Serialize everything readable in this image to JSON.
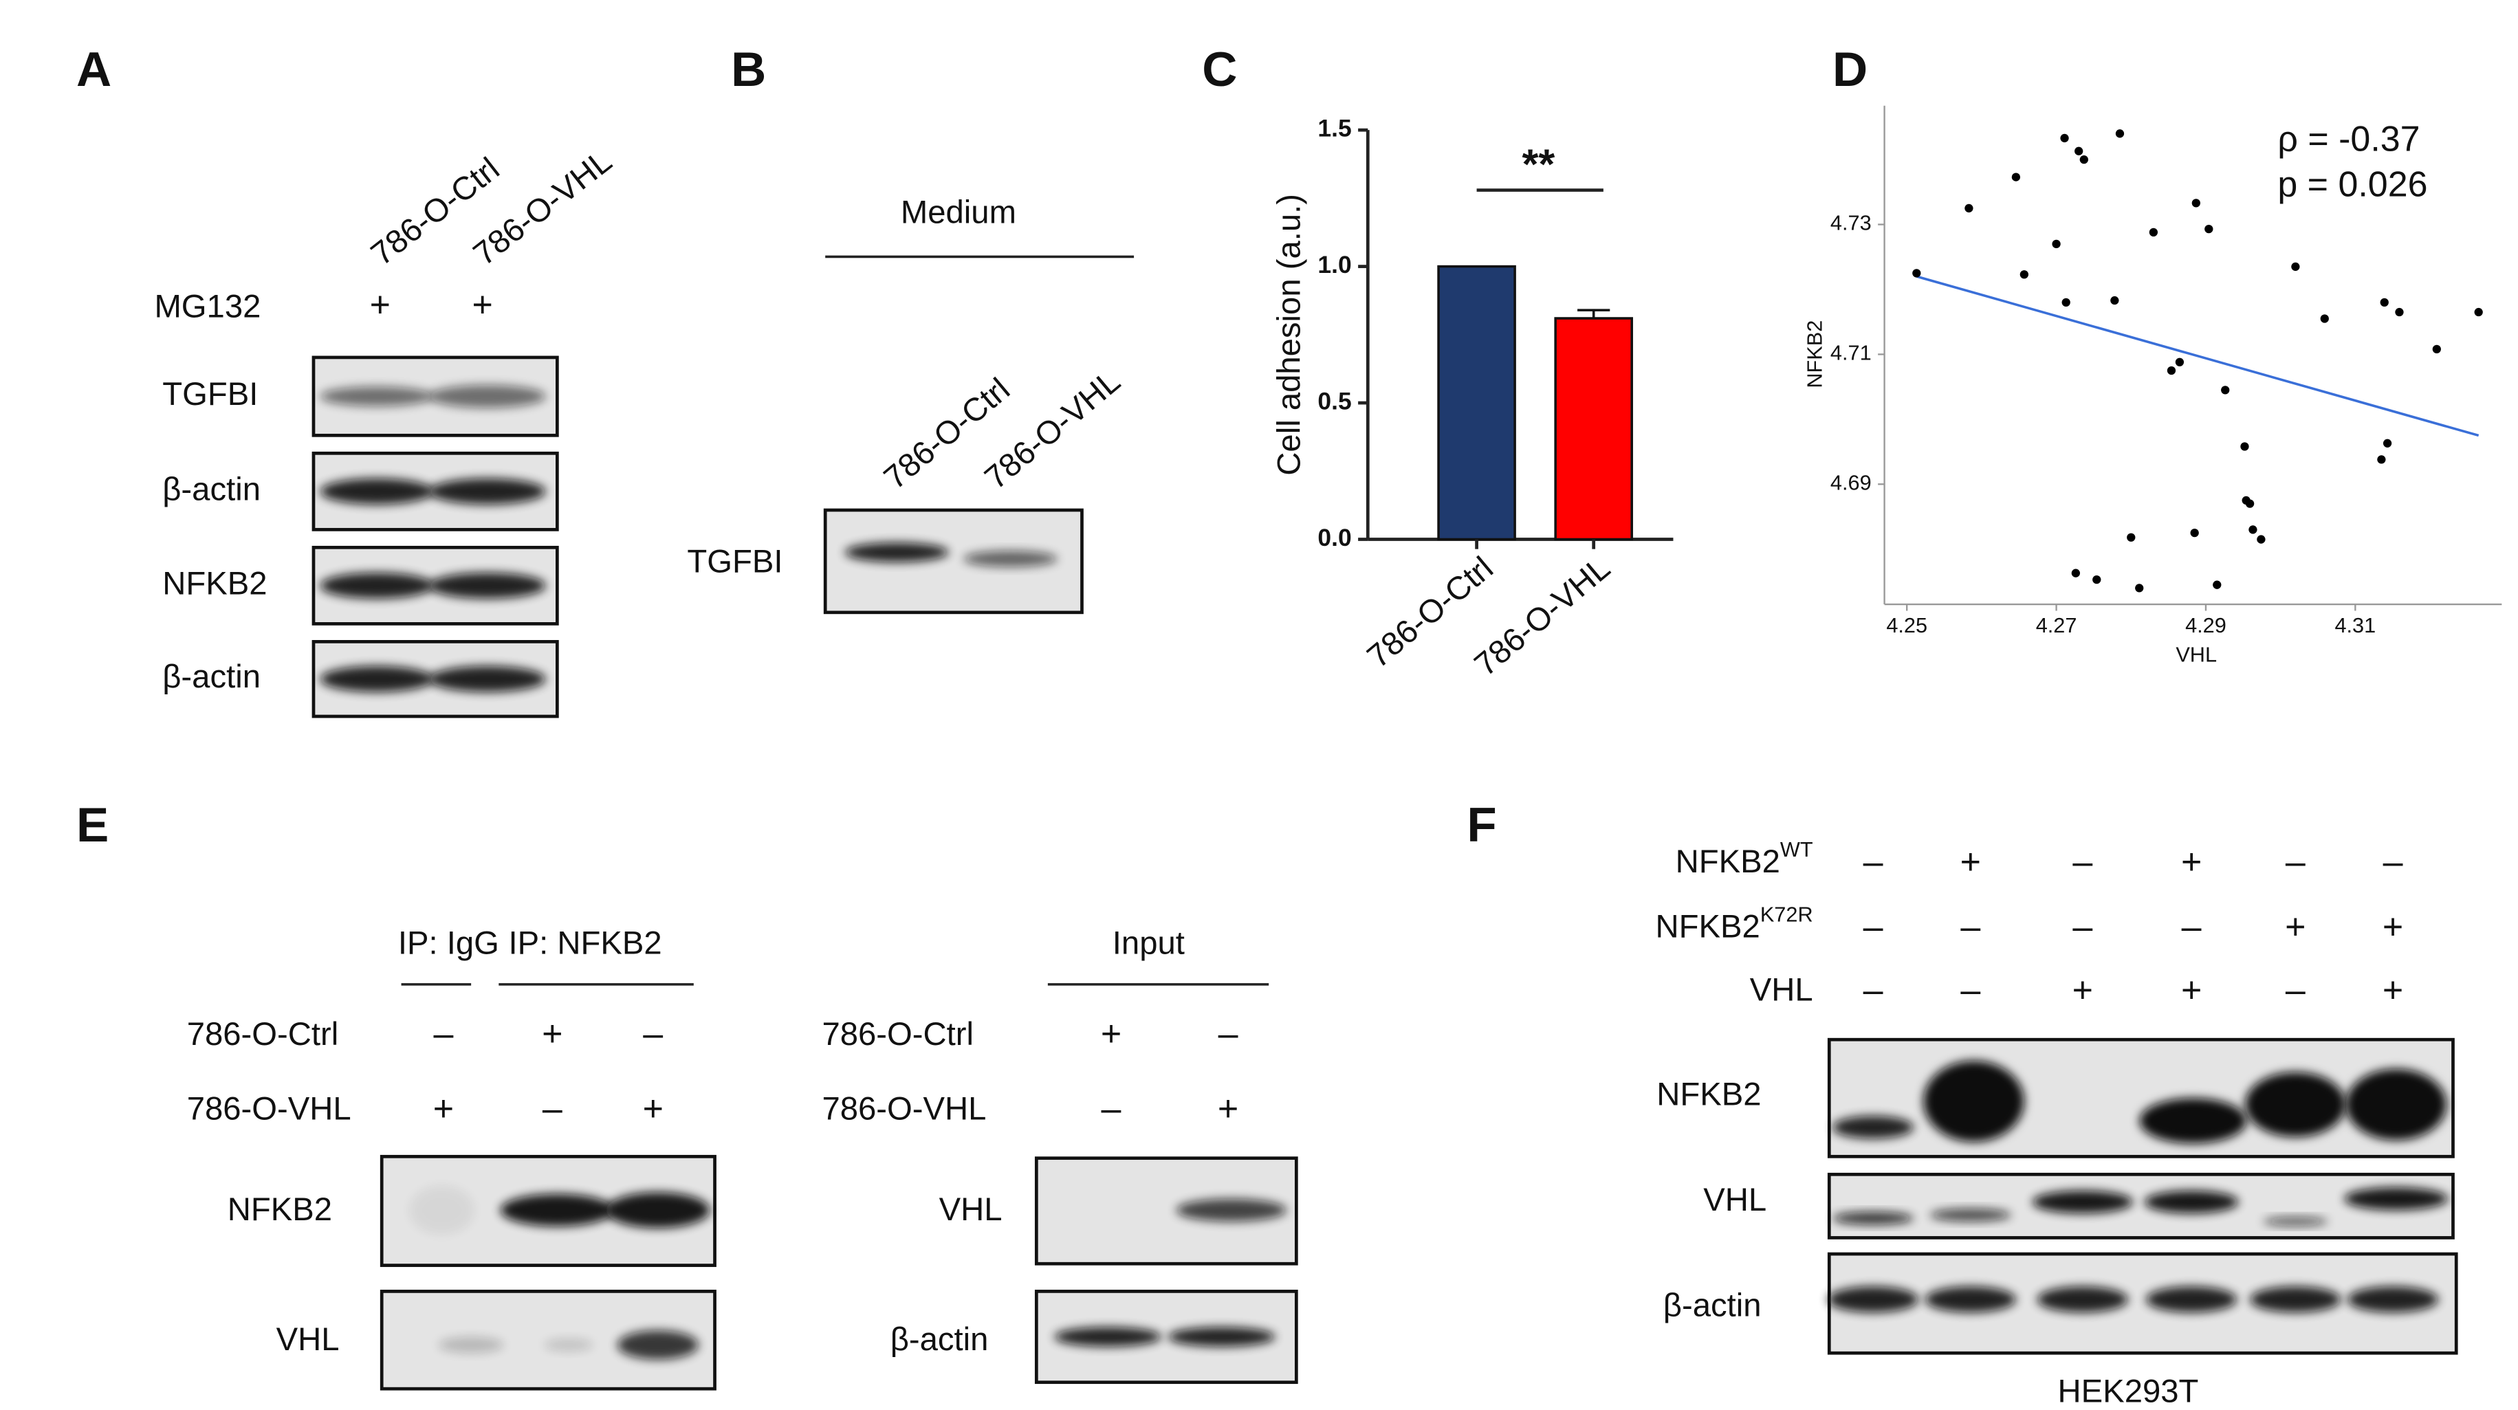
{
  "panels": {
    "A": {
      "label": "A",
      "lanes": [
        "786-O-Ctrl",
        "786-O-VHL"
      ],
      "treatment": "MG132",
      "treatment_marks": [
        "+",
        "+"
      ],
      "blots": [
        "TGFBI",
        "β-actin",
        "NFKB2",
        "β-actin"
      ]
    },
    "B": {
      "label": "B",
      "header": "Medium",
      "lanes": [
        "786-O-Ctrl",
        "786-O-VHL"
      ],
      "blots": [
        "TGFBI"
      ]
    },
    "C": {
      "label": "C"
    },
    "D": {
      "label": "D"
    },
    "E": {
      "label": "E",
      "ip_groups": [
        "IP: IgG",
        "IP: NFKB2"
      ],
      "rows": [
        {
          "name": "786-O-Ctrl",
          "marks": [
            "–",
            "+",
            "–"
          ]
        },
        {
          "name": "786-O-VHL",
          "marks": [
            "+",
            "–",
            "+"
          ]
        }
      ],
      "blots": [
        "NFKB2",
        "VHL"
      ],
      "input_header": "Input",
      "input_rows": [
        {
          "name": "786-O-Ctrl",
          "marks": [
            "+",
            "–"
          ]
        },
        {
          "name": "786-O-VHL",
          "marks": [
            "–",
            "+"
          ]
        }
      ],
      "input_blots": [
        "VHL",
        "β-actin"
      ]
    },
    "F": {
      "label": "F",
      "rows": [
        {
          "name": "NFKB2",
          "sup": "WT",
          "marks": [
            "–",
            "+",
            "–",
            "+",
            "–",
            "–"
          ]
        },
        {
          "name": "NFKB2",
          "sup": "K72R",
          "marks": [
            "–",
            "–",
            "–",
            "–",
            "+",
            "+"
          ]
        },
        {
          "name": "VHL",
          "marks": [
            "–",
            "–",
            "+",
            "+",
            "–",
            "+"
          ]
        }
      ],
      "blots": [
        "NFKB2",
        "VHL",
        "β-actin"
      ],
      "cell_line": "HEK293T"
    }
  },
  "chart_data": [
    {
      "type": "bar",
      "ylabel": "Cell adhesion (a.u.)",
      "categories": [
        "786-O-Ctrl",
        "786-O-VHL"
      ],
      "values": [
        1.0,
        0.81
      ],
      "errors": [
        0,
        0.03
      ],
      "colors": [
        "#1f3a6e",
        "#ff0000"
      ],
      "ylim": [
        0,
        1.5
      ],
      "yticks": [
        {
          "value": 0,
          "label": "0.0"
        },
        {
          "value": 0.5,
          "label": "0.5"
        },
        {
          "value": 1,
          "label": "1.0"
        },
        {
          "value": 1.5,
          "label": "1.5"
        }
      ],
      "annotation": "**"
    },
    {
      "type": "scatter",
      "xlabel": "VHL",
      "ylabel": "NFKB2",
      "color": "#000000",
      "x": [
        4.2513,
        4.2583,
        4.2646,
        4.2657,
        4.27,
        4.2711,
        4.2713,
        4.273,
        4.2737,
        4.2778,
        4.2785,
        4.283,
        4.2854,
        4.2865,
        4.2887,
        4.2904,
        4.2926,
        4.2952,
        4.2954,
        4.2959,
        4.2963,
        4.2974,
        4.2885,
        4.28,
        4.2726,
        4.2754,
        4.2811,
        4.2915,
        4.302,
        4.3059,
        4.3139,
        4.3159,
        4.3209,
        4.3265,
        4.3135,
        4.3143
      ],
      "y": [
        4.7225,
        4.7325,
        4.7373,
        4.7223,
        4.727,
        4.7433,
        4.718,
        4.7413,
        4.74,
        4.7183,
        4.744,
        4.7288,
        4.7075,
        4.7088,
        4.7333,
        4.7293,
        4.7045,
        4.6958,
        4.6875,
        4.687,
        4.683,
        4.6815,
        4.6825,
        4.6818,
        4.6763,
        4.6753,
        4.674,
        4.6745,
        4.7235,
        4.7155,
        4.718,
        4.7165,
        4.7108,
        4.7165,
        4.6938,
        4.6963
      ],
      "fit": {
        "x": [
          4.2513,
          4.3265
        ],
        "y": [
          4.722,
          4.6975
        ],
        "color": "#3a6fd8"
      },
      "xlim": [
        4.247,
        4.3296
      ],
      "ylim": [
        4.6715,
        4.7483
      ],
      "xticks": [
        4.25,
        4.27,
        4.29,
        4.31
      ],
      "yticks": [
        4.69,
        4.71,
        4.73
      ],
      "annotations": [
        "ρ = -0.37",
        "p = 0.026"
      ],
      "annotation_color": "#ff2a2a"
    }
  ]
}
